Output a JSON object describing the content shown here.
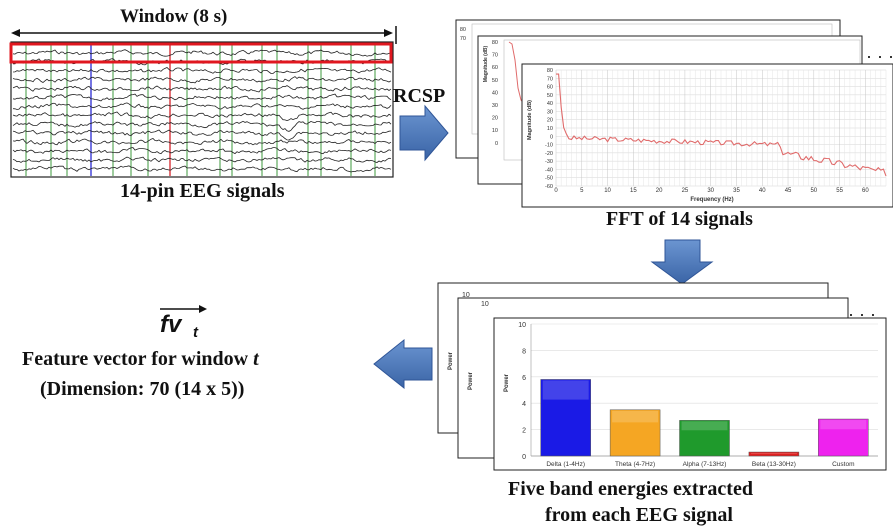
{
  "eeg": {
    "window_label": "Window (8 s)",
    "caption": "14-pin EEG signals",
    "channel_count": 14,
    "colors": {
      "window_box": "#e0171f",
      "marker_blue": "#3a3ad6",
      "marker_red": "#d9333a",
      "grid_green": "#3c9a3c"
    }
  },
  "rcsp_label": "RCSP",
  "fft": {
    "caption": "FFT  of 14 signals",
    "ellipsis": "· · ·",
    "xlabel": "Frequency (Hz)",
    "ylabel": "Magnitude (dB)",
    "y_ticks": [
      "80",
      "70",
      "60",
      "50",
      "40",
      "30",
      "20",
      "10",
      "0",
      "-10",
      "-20",
      "-30",
      "-40",
      "-50",
      "-60"
    ],
    "back_y_ticks": [
      "80",
      "70",
      "60",
      "50",
      "40",
      "30",
      "20",
      "10",
      "0"
    ],
    "x_ticks": [
      "0",
      "5",
      "10",
      "15",
      "20",
      "25",
      "30",
      "35",
      "40",
      "45",
      "50",
      "55",
      "60"
    ],
    "line_color": "#e06b6b"
  },
  "bands": {
    "caption_line1": "Five band energies extracted",
    "caption_line2": "from each EEG signal",
    "ellipsis": "· · ·",
    "ylabel": "Power",
    "y_ticks": [
      "0",
      "2",
      "4",
      "6",
      "8",
      "10"
    ],
    "back_y_ticks": [
      "10"
    ],
    "bars": [
      {
        "label": "Delta (1-4Hz)",
        "value": 5.8,
        "color": "#1a1ae6"
      },
      {
        "label": "Theta (4-7Hz)",
        "value": 3.5,
        "color": "#f5a623"
      },
      {
        "label": "Alpha (7-13Hz)",
        "value": 2.7,
        "color": "#1f9a2c"
      },
      {
        "label": "Beta (13-30Hz)",
        "value": 0.3,
        "color": "#e02020"
      },
      {
        "label": "Custom",
        "value": 2.8,
        "color": "#ee22ee"
      }
    ]
  },
  "feature": {
    "symbol_base": "fv",
    "symbol_sub": "t",
    "title_prefix": "Feature vector for window ",
    "title_var": "t",
    "dimension": "(Dimension: 70 (14 x 5))"
  },
  "arrow_color": "#4a76b6"
}
